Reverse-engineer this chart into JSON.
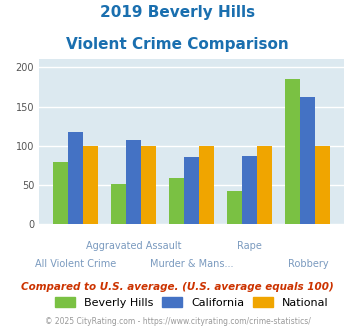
{
  "title_line1": "2019 Beverly Hills",
  "title_line2": "Violent Crime Comparison",
  "title_color": "#1a6faf",
  "categories": [
    "All Violent Crime",
    "Aggravated Assault",
    "Murder & Mans...",
    "Rape",
    "Robbery"
  ],
  "beverly_hills": [
    79,
    52,
    59,
    42,
    185
  ],
  "california": [
    117,
    107,
    86,
    87,
    162
  ],
  "national": [
    100,
    100,
    100,
    100,
    100
  ],
  "colors": {
    "beverly_hills": "#7ac143",
    "california": "#4472c4",
    "national": "#f0a500"
  },
  "ylim": [
    0,
    210
  ],
  "yticks": [
    0,
    50,
    100,
    150,
    200
  ],
  "bg_color": "#dce9f0",
  "grid_color": "#ffffff",
  "footnote": "Compared to U.S. average. (U.S. average equals 100)",
  "copyright": "© 2025 CityRating.com - https://www.cityrating.com/crime-statistics/",
  "footnote_color": "#cc3300",
  "copyright_color": "#999999",
  "copyright_link_color": "#4472c4"
}
